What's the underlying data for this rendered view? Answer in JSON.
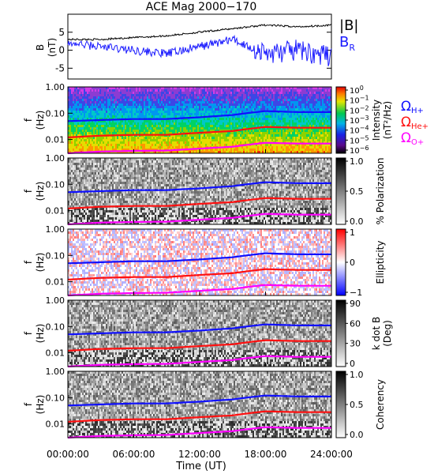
{
  "title": "ACE Mag 2000−170",
  "xlabel": "Time (UT)",
  "time_ticks": [
    "00:00:00",
    "06:00:00",
    "12:00:00",
    "18:00:00",
    "24:00:00"
  ],
  "freq_ticks": [
    "1.00",
    "0.10",
    "0.01"
  ],
  "colors": {
    "b_total": "#000000",
    "b_r": "#1a1aff",
    "omega_h": "#1010ff",
    "omega_he": "#ff1010",
    "omega_o": "#ff00ff"
  },
  "panels": [
    {
      "ylabel": [
        "B",
        "(nT)"
      ],
      "legend": {
        "total": "|B|",
        "radial": {
          "main": "B",
          "sub": "R"
        }
      }
    },
    {
      "ylabel": [
        "f",
        "(Hz)"
      ],
      "colorbar": {
        "title": [
          "Intensity",
          "(nT²/Hz)"
        ],
        "ticks": [
          {
            "base": "10",
            "exp": "0"
          },
          {
            "base": "10",
            "exp": "−1"
          },
          {
            "base": "10",
            "exp": "−2"
          },
          {
            "base": "10",
            "exp": "−3"
          },
          {
            "base": "10",
            "exp": "−4"
          },
          {
            "base": "10",
            "exp": "−5"
          },
          {
            "base": "10",
            "exp": "−6"
          }
        ]
      },
      "legend": [
        {
          "main": "Ω",
          "sub": "H+",
          "color": "#1010ff"
        },
        {
          "main": "Ω",
          "sub": "He+",
          "color": "#ff1010"
        },
        {
          "main": "Ω",
          "sub": "O+",
          "color": "#ff00ff"
        }
      ]
    },
    {
      "ylabel": [
        "f",
        "(Hz)"
      ],
      "colorbar": {
        "title": [
          "% Polarization"
        ],
        "ticks": [
          "1.0",
          "0.5",
          "0.0"
        ]
      }
    },
    {
      "ylabel": [
        "f",
        "(Hz)"
      ],
      "colorbar": {
        "title": [
          "Ellipticity"
        ],
        "ticks": [
          "1",
          "0",
          "−1"
        ]
      }
    },
    {
      "ylabel": [
        "f",
        "(Hz)"
      ],
      "colorbar": {
        "title": [
          "k dot B",
          "(Deg)"
        ],
        "ticks": [
          "90",
          "60",
          "30",
          "0"
        ]
      }
    },
    {
      "ylabel": [
        "f",
        "(Hz)"
      ],
      "colorbar": {
        "title": [
          "Coherency"
        ],
        "ticks": [
          "1.0",
          "0.5",
          "0.0"
        ]
      }
    }
  ],
  "chart_data": {
    "type": "line",
    "title": "ACE Mag 2000−170",
    "xlabel": "Time (UT)",
    "x_hours": [
      0,
      3,
      6,
      9,
      12,
      15,
      18,
      21,
      24
    ],
    "b_panel": {
      "ylim": [
        -8,
        10
      ],
      "yticks": [
        5,
        0,
        -5
      ],
      "series": [
        {
          "name": "|B|",
          "values": [
            3.0,
            3.0,
            3.5,
            4.0,
            5.0,
            6.0,
            7.0,
            6.5,
            7.0
          ]
        },
        {
          "name": "BR",
          "values": [
            2.0,
            1.0,
            0.0,
            -1.0,
            1.0,
            3.0,
            -1.0,
            0.0,
            -2.0
          ]
        }
      ]
    },
    "spectrogram_freq_range_hz": [
      0.003,
      1.0
    ],
    "gyrofrequency_series": [
      {
        "name": "ΩH+",
        "values": [
          0.05,
          0.055,
          0.06,
          0.06,
          0.07,
          0.085,
          0.12,
          0.11,
          0.11
        ]
      },
      {
        "name": "ΩHe+",
        "values": [
          0.012,
          0.014,
          0.015,
          0.015,
          0.018,
          0.021,
          0.03,
          0.028,
          0.028
        ]
      },
      {
        "name": "ΩO+",
        "values": [
          0.003,
          0.0035,
          0.0037,
          0.0038,
          0.0045,
          0.0053,
          0.0075,
          0.007,
          0.007
        ]
      }
    ],
    "colorbar_ranges": {
      "intensity_log10": [
        -6,
        0
      ],
      "polarization": [
        0,
        1
      ],
      "ellipticity": [
        -1,
        1
      ],
      "k_dot_b_deg": [
        0,
        90
      ],
      "coherency": [
        0,
        1
      ]
    }
  }
}
